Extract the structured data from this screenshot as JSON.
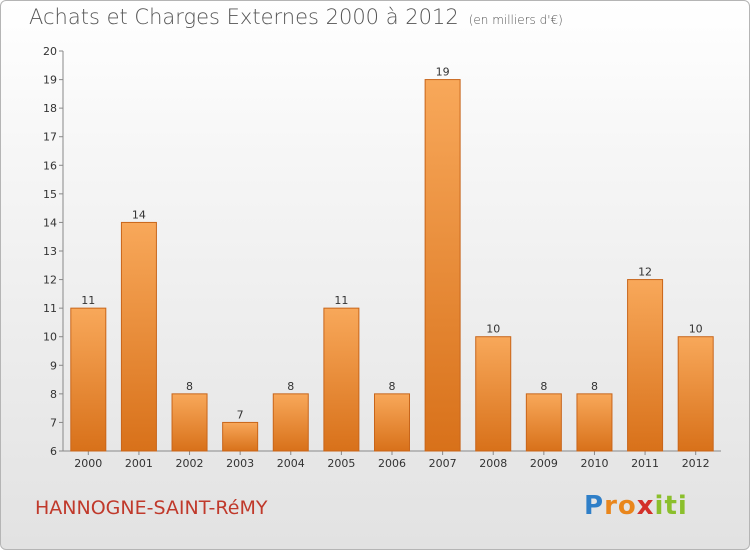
{
  "chart_data": {
    "type": "bar",
    "title": "Achats et Charges Externes 2000 à 2012",
    "subtitle": "(en milliers d'€)",
    "categories": [
      "2000",
      "2001",
      "2002",
      "2003",
      "2004",
      "2005",
      "2006",
      "2007",
      "2008",
      "2009",
      "2010",
      "2011",
      "2012"
    ],
    "values": [
      11,
      14,
      8,
      7,
      8,
      11,
      8,
      19,
      10,
      8,
      8,
      12,
      10
    ],
    "ylim": [
      6,
      20
    ],
    "yticks": [
      6,
      7,
      8,
      9,
      10,
      11,
      12,
      13,
      14,
      15,
      16,
      17,
      18,
      19,
      20
    ],
    "xlabel": "",
    "ylabel": "",
    "grid": false,
    "colors": {
      "bar_top": "#f8a85a",
      "bar_bottom": "#d8711a",
      "bar_stroke": "#c8651a"
    }
  },
  "footer": {
    "location": "HANNOGNE-SAINT-RéMY",
    "brand_letters": [
      "P",
      "r",
      "o",
      "x",
      "i",
      "t",
      "i"
    ],
    "brand_colors": [
      "#2f7fc8",
      "#e9861c",
      "#e9861c",
      "#d3302a",
      "#8bbf2c",
      "#8bbf2c",
      "#8bbf2c"
    ]
  }
}
